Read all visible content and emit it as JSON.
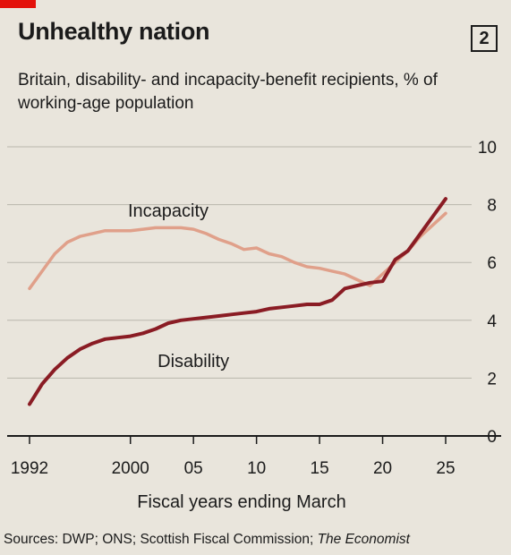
{
  "header": {
    "title": "Unhealthy nation",
    "chart_number": "2",
    "subtitle": "Britain, disability- and incapacity-benefit recipients, % of working-age population"
  },
  "footer": {
    "source_prefix": "Sources: DWP; ONS; Scottish Fiscal Commission; ",
    "source_publication": "The Economist"
  },
  "colors": {
    "background": "#e9e5dc",
    "disability": "#8a1c24",
    "incapacity": "#e0a08a",
    "accent": "#e3120b"
  },
  "chart_data": {
    "type": "line",
    "title": "Unhealthy nation",
    "subtitle": "Britain, disability- and incapacity-benefit recipients, % of working-age population",
    "xlabel": "Fiscal years ending March",
    "ylabel": "",
    "xlim": [
      1992,
      2027
    ],
    "ylim": [
      0,
      10
    ],
    "x_tick_labels": [
      "1992",
      "2000",
      "05",
      "10",
      "15",
      "20",
      "25"
    ],
    "x_tick_values": [
      1992,
      2000,
      2005,
      2010,
      2015,
      2020,
      2025
    ],
    "y_ticks": [
      0,
      2,
      4,
      6,
      8,
      10
    ],
    "y_axis_position": "right",
    "grid": true,
    "legend": "none",
    "series": [
      {
        "name": "Incapacity",
        "color": "#e0a08a",
        "x": [
          1992,
          1993,
          1994,
          1995,
          1996,
          1997,
          1998,
          1999,
          2000,
          2001,
          2002,
          2003,
          2004,
          2005,
          2006,
          2007,
          2008,
          2009,
          2010,
          2011,
          2012,
          2013,
          2014,
          2015,
          2016,
          2017,
          2018,
          2019,
          2020,
          2021,
          2022,
          2023,
          2024,
          2025
        ],
        "values": [
          5.1,
          5.7,
          6.3,
          6.7,
          6.9,
          7.0,
          7.1,
          7.1,
          7.1,
          7.15,
          7.2,
          7.2,
          7.2,
          7.15,
          7.0,
          6.8,
          6.65,
          6.45,
          6.5,
          6.3,
          6.2,
          6.0,
          5.85,
          5.8,
          5.7,
          5.6,
          5.4,
          5.2,
          5.6,
          6.0,
          6.4,
          6.9,
          7.3,
          7.7
        ]
      },
      {
        "name": "Disability",
        "color": "#8a1c24",
        "x": [
          1992,
          1993,
          1994,
          1995,
          1996,
          1997,
          1998,
          1999,
          2000,
          2001,
          2002,
          2003,
          2004,
          2005,
          2006,
          2007,
          2008,
          2009,
          2010,
          2011,
          2012,
          2013,
          2014,
          2015,
          2016,
          2017,
          2018,
          2019,
          2020,
          2021,
          2022,
          2023,
          2024,
          2025
        ],
        "values": [
          1.1,
          1.8,
          2.3,
          2.7,
          3.0,
          3.2,
          3.35,
          3.4,
          3.45,
          3.55,
          3.7,
          3.9,
          4.0,
          4.05,
          4.1,
          4.15,
          4.2,
          4.25,
          4.3,
          4.4,
          4.45,
          4.5,
          4.55,
          4.55,
          4.7,
          5.1,
          5.2,
          5.3,
          5.35,
          6.1,
          6.4,
          7.0,
          7.6,
          8.2
        ]
      }
    ],
    "annotations": [
      {
        "text": "Incapacity",
        "series": "Incapacity",
        "x": 2003,
        "y": 7.8
      },
      {
        "text": "Disability",
        "series": "Disability",
        "x": 2005,
        "y": 2.6
      }
    ]
  }
}
